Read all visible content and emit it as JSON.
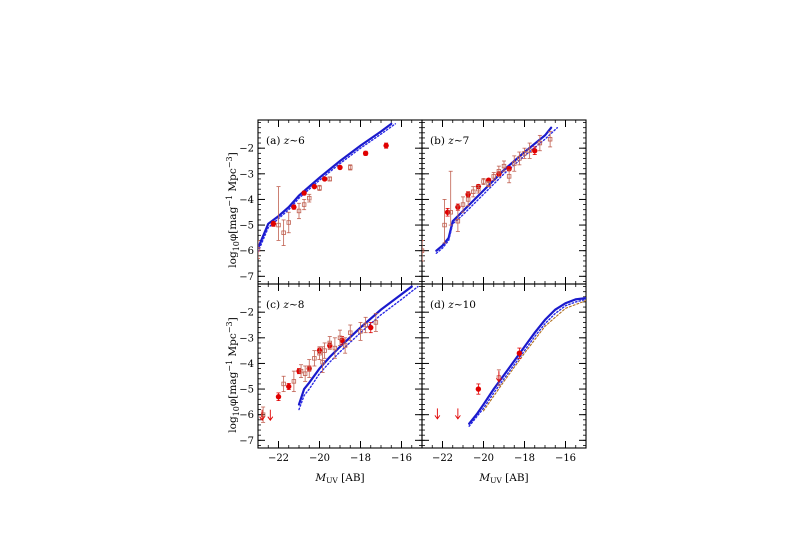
{
  "figure": {
    "ylabel": "log₁₀φ[mag⁻¹ Mpc⁻³]",
    "xlabel": "M_UV [AB]",
    "ylabel_parts": {
      "base": "log",
      "sub": "10",
      "phi": "φ[mag",
      "sup1": "−1",
      "mid": " Mpc",
      "sup2": "−3",
      "end": "]"
    },
    "xlabel_parts": {
      "m": "M",
      "sub": "UV",
      "unit": " [AB]"
    }
  },
  "colors": {
    "model_solid": "#1a1acc",
    "model_dotted": "#2a2ae6",
    "model_dashed": "#b07020",
    "observed_filled": "#e00000",
    "observed_open": "#c06050"
  },
  "chart_data": [
    {
      "type": "scatter",
      "panel": "a",
      "label": "(a) z∼6",
      "xlim": [
        -23,
        -15
      ],
      "ylim": [
        -7.3,
        -0.9
      ],
      "xticks": [
        -22,
        -20,
        -18,
        -16
      ],
      "yticks": [
        -2,
        -3,
        -4,
        -5,
        -6,
        -7
      ],
      "show_xticklabels": false,
      "show_yticklabels": true,
      "series": [
        {
          "kind": "model-solid",
          "x": [
            -23.0,
            -22.5,
            -22.0,
            -21.5,
            -21.0,
            -20.5,
            -20.0,
            -19.0,
            -18.0,
            -17.0,
            -16.5
          ],
          "y": [
            -5.9,
            -4.95,
            -4.65,
            -4.3,
            -3.85,
            -3.5,
            -3.15,
            -2.5,
            -1.9,
            -1.35,
            -1.05
          ]
        },
        {
          "kind": "model-dotted",
          "x": [
            -23.0,
            -22.5,
            -22.0,
            -21.5,
            -21.0,
            -20.5,
            -20.0,
            -19.0,
            -18.0,
            -17.0,
            -16.3
          ],
          "y": [
            -6.05,
            -5.1,
            -4.75,
            -4.4,
            -3.95,
            -3.6,
            -3.25,
            -2.6,
            -2.0,
            -1.45,
            -1.05
          ]
        },
        {
          "kind": "observed-filled",
          "points": [
            [
              -22.25,
              -4.95,
              0.1,
              0.1
            ],
            [
              -21.25,
              -4.3,
              0.08,
              0.08
            ],
            [
              -20.75,
              -3.75,
              0.07,
              0.07
            ],
            [
              -20.25,
              -3.5,
              0.06,
              0.06
            ],
            [
              -19.75,
              -3.2,
              0.06,
              0.06
            ],
            [
              -19.0,
              -2.75,
              0.06,
              0.06
            ],
            [
              -17.75,
              -2.2,
              0.08,
              0.08
            ],
            [
              -16.75,
              -1.9,
              0.1,
              0.1
            ]
          ]
        },
        {
          "kind": "observed-open",
          "points": [
            [
              -23.0,
              -5.95,
              0.35,
              0.35
            ],
            [
              -22.0,
              -5.0,
              0.6,
              1.5
            ],
            [
              -21.75,
              -5.3,
              0.5,
              0.5
            ],
            [
              -21.5,
              -4.9,
              0.4,
              0.4
            ],
            [
              -21.0,
              -4.45,
              0.3,
              0.3
            ],
            [
              -20.75,
              -4.2,
              0.2,
              0.2
            ],
            [
              -20.5,
              -3.95,
              0.15,
              0.15
            ],
            [
              -20.0,
              -3.55,
              0.1,
              0.1
            ],
            [
              -19.5,
              -3.2,
              0.08,
              0.08
            ],
            [
              -18.5,
              -2.75,
              0.1,
              0.1
            ]
          ]
        }
      ]
    },
    {
      "type": "scatter",
      "panel": "b",
      "label": "(b) z∼7",
      "xlim": [
        -23,
        -15
      ],
      "ylim": [
        -7.3,
        -0.9
      ],
      "xticks": [
        -22,
        -20,
        -18,
        -16
      ],
      "yticks": [
        -2,
        -3,
        -4,
        -5,
        -6,
        -7
      ],
      "show_xticklabels": false,
      "show_yticklabels": false,
      "series": [
        {
          "kind": "model-solid",
          "x": [
            -22.3,
            -22.0,
            -21.7,
            -21.5,
            -21.0,
            -20.5,
            -20.0,
            -19.5,
            -19.0,
            -18.0,
            -17.0,
            -16.7
          ],
          "y": [
            -6.0,
            -5.8,
            -5.5,
            -4.85,
            -4.45,
            -4.05,
            -3.65,
            -3.25,
            -2.85,
            -2.15,
            -1.5,
            -1.2
          ]
        },
        {
          "kind": "model-dotted",
          "x": [
            -22.3,
            -22.0,
            -21.7,
            -21.5,
            -21.0,
            -20.5,
            -20.0,
            -19.5,
            -19.0,
            -18.0,
            -17.0,
            -16.4
          ],
          "y": [
            -6.1,
            -5.9,
            -5.6,
            -4.95,
            -4.6,
            -4.2,
            -3.8,
            -3.4,
            -3.0,
            -2.3,
            -1.65,
            -1.2
          ]
        },
        {
          "kind": "observed-filled",
          "points": [
            [
              -21.75,
              -4.5,
              0.15,
              0.15
            ],
            [
              -21.25,
              -4.3,
              0.12,
              0.12
            ],
            [
              -20.75,
              -3.8,
              0.1,
              0.1
            ],
            [
              -20.25,
              -3.5,
              0.08,
              0.08
            ],
            [
              -19.75,
              -3.25,
              0.07,
              0.07
            ],
            [
              -19.25,
              -3.0,
              0.07,
              0.07
            ],
            [
              -18.75,
              -2.8,
              0.08,
              0.08
            ],
            [
              -17.5,
              -2.1,
              0.15,
              0.15
            ]
          ]
        },
        {
          "kind": "observed-open",
          "points": [
            [
              -23.0,
              -6.0,
              0.4,
              0.4
            ],
            [
              -21.9,
              -5.0,
              0.7,
              1.0
            ],
            [
              -21.6,
              -4.5,
              0.5,
              1.6
            ],
            [
              -21.25,
              -4.85,
              0.4,
              0.6
            ],
            [
              -21.0,
              -4.2,
              0.3,
              0.3
            ],
            [
              -20.75,
              -4.0,
              0.25,
              0.25
            ],
            [
              -20.5,
              -3.7,
              0.2,
              0.2
            ],
            [
              -20.25,
              -3.6,
              0.15,
              0.15
            ],
            [
              -20.0,
              -3.3,
              0.12,
              0.12
            ],
            [
              -19.75,
              -3.4,
              0.1,
              0.1
            ],
            [
              -19.5,
              -3.1,
              0.15,
              0.15
            ],
            [
              -19.25,
              -2.9,
              0.2,
              0.2
            ],
            [
              -19.0,
              -2.7,
              0.2,
              0.2
            ],
            [
              -18.75,
              -3.1,
              0.25,
              0.25
            ],
            [
              -18.5,
              -2.6,
              0.3,
              0.3
            ],
            [
              -18.25,
              -2.4,
              0.25,
              0.25
            ],
            [
              -18.0,
              -2.2,
              0.2,
              0.2
            ],
            [
              -17.75,
              -2.1,
              0.3,
              0.3
            ],
            [
              -17.25,
              -1.8,
              0.3,
              0.3
            ],
            [
              -16.75,
              -1.65,
              0.3,
              0.3
            ]
          ]
        }
      ]
    },
    {
      "type": "scatter",
      "panel": "c",
      "label": "(c) z∼8",
      "xlim": [
        -23,
        -15
      ],
      "ylim": [
        -7.3,
        -0.9
      ],
      "xticks": [
        -22,
        -20,
        -18,
        -16
      ],
      "yticks": [
        -2,
        -3,
        -4,
        -5,
        -6,
        -7
      ],
      "show_xticklabels": true,
      "show_yticklabels": true,
      "series": [
        {
          "kind": "model-solid",
          "x": [
            -21.0,
            -20.75,
            -20.5,
            -20.0,
            -19.5,
            -19.0,
            -18.0,
            -17.0,
            -16.0,
            -15.5
          ],
          "y": [
            -5.6,
            -5.0,
            -4.75,
            -4.2,
            -3.75,
            -3.35,
            -2.6,
            -1.9,
            -1.3,
            -1.0
          ]
        },
        {
          "kind": "model-dotted",
          "x": [
            -21.0,
            -20.75,
            -20.5,
            -20.0,
            -19.5,
            -19.0,
            -18.0,
            -17.0,
            -16.0,
            -15.2
          ],
          "y": [
            -5.8,
            -5.25,
            -5.0,
            -4.4,
            -3.95,
            -3.55,
            -2.8,
            -2.1,
            -1.5,
            -1.0
          ]
        },
        {
          "kind": "observed-filled",
          "points": [
            [
              -22.0,
              -5.3,
              0.15,
              0.15
            ],
            [
              -21.5,
              -4.9,
              0.12,
              0.12
            ],
            [
              -21.0,
              -4.3,
              0.1,
              0.1
            ],
            [
              -20.5,
              -4.2,
              0.1,
              0.1
            ],
            [
              -20.0,
              -3.5,
              0.1,
              0.1
            ],
            [
              -19.5,
              -3.3,
              0.1,
              0.1
            ],
            [
              -18.9,
              -3.1,
              0.15,
              0.15
            ],
            [
              -17.5,
              -2.6,
              0.2,
              0.2
            ]
          ]
        },
        {
          "kind": "observed-open",
          "points": [
            [
              -22.75,
              -6.0,
              0.3,
              0.3
            ],
            [
              -21.75,
              -4.8,
              0.3,
              0.3
            ],
            [
              -21.25,
              -4.7,
              0.4,
              0.4
            ],
            [
              -20.9,
              -4.3,
              0.25,
              0.25
            ],
            [
              -20.7,
              -4.4,
              0.3,
              0.3
            ],
            [
              -20.5,
              -4.2,
              0.35,
              0.35
            ],
            [
              -20.25,
              -3.8,
              0.3,
              0.3
            ],
            [
              -20.0,
              -3.6,
              0.25,
              0.25
            ],
            [
              -19.85,
              -3.95,
              0.4,
              0.6
            ],
            [
              -19.75,
              -3.5,
              0.3,
              0.3
            ],
            [
              -19.5,
              -3.2,
              0.25,
              0.25
            ],
            [
              -19.25,
              -3.4,
              0.4,
              0.4
            ],
            [
              -19.0,
              -3.0,
              0.3,
              0.3
            ],
            [
              -18.75,
              -3.3,
              0.3,
              0.3
            ],
            [
              -18.5,
              -2.8,
              0.3,
              0.3
            ],
            [
              -18.0,
              -2.75,
              0.35,
              0.35
            ],
            [
              -17.75,
              -2.5,
              0.3,
              0.3
            ],
            [
              -17.25,
              -2.4,
              0.35,
              0.35
            ]
          ]
        },
        {
          "kind": "upper-limit",
          "points": [
            [
              -22.8,
              -6.0
            ],
            [
              -22.4,
              -6.0
            ]
          ]
        }
      ]
    },
    {
      "type": "scatter",
      "panel": "d",
      "label": "(d) z∼10",
      "xlim": [
        -23,
        -15
      ],
      "ylim": [
        -7.3,
        -0.9
      ],
      "xticks": [
        -22,
        -20,
        -18,
        -16
      ],
      "yticks": [
        -2,
        -3,
        -4,
        -5,
        -6,
        -7
      ],
      "show_xticklabels": true,
      "show_yticklabels": false,
      "series": [
        {
          "kind": "model-solid",
          "x": [
            -20.7,
            -20.3,
            -20.0,
            -19.5,
            -19.0,
            -18.5,
            -18.0,
            -17.5,
            -17.0,
            -16.5,
            -16.0,
            -15.5,
            -15.0
          ],
          "y": [
            -6.35,
            -5.95,
            -5.6,
            -5.0,
            -4.45,
            -3.9,
            -3.35,
            -2.8,
            -2.3,
            -1.9,
            -1.65,
            -1.5,
            -1.45
          ]
        },
        {
          "kind": "model-dotted",
          "x": [
            -20.7,
            -20.3,
            -20.0,
            -19.5,
            -19.0,
            -18.5,
            -18.0,
            -17.5,
            -17.0,
            -16.5,
            -16.0,
            -15.5,
            -15.0
          ],
          "y": [
            -6.45,
            -6.05,
            -5.75,
            -5.15,
            -4.6,
            -4.05,
            -3.5,
            -2.95,
            -2.45,
            -2.05,
            -1.75,
            -1.6,
            -1.5
          ]
        },
        {
          "kind": "model-dashed",
          "x": [
            -20.0,
            -19.0,
            -18.0,
            -17.0,
            -16.0,
            -15.0
          ],
          "y": [
            -5.85,
            -4.7,
            -3.6,
            -2.55,
            -1.85,
            -1.55
          ]
        },
        {
          "kind": "observed-filled",
          "points": [
            [
              -20.25,
              -5.0,
              0.2,
              0.2
            ],
            [
              -18.25,
              -3.6,
              0.2,
              0.2
            ]
          ]
        },
        {
          "kind": "observed-open",
          "points": [
            [
              -19.25,
              -4.55,
              0.3,
              0.3
            ]
          ]
        },
        {
          "kind": "upper-limit",
          "points": [
            [
              -22.25,
              -5.95
            ],
            [
              -21.25,
              -5.95
            ],
            [
              -19.25,
              -4.5
            ]
          ]
        }
      ]
    }
  ]
}
